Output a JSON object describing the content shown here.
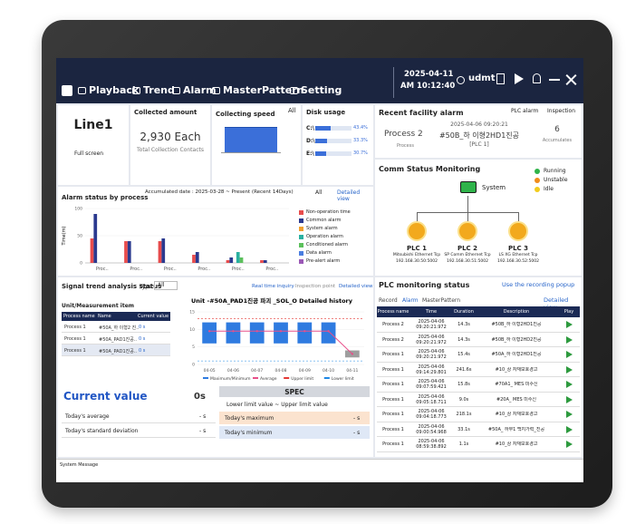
{
  "nav": {
    "items": [
      "Playback",
      "Trend",
      "Alarm",
      "MasterPattern",
      "Setting"
    ],
    "date": "2025-04-11",
    "time": "AM 10:12:40",
    "user": "udmt"
  },
  "line_panel": {
    "title": "Line1",
    "mode": "Full screen"
  },
  "collected": {
    "label": "Collected amount",
    "value": "2,930 Each",
    "caption": "Total Collection Contacts"
  },
  "speed": {
    "label": "Collecting speed",
    "filter": "All"
  },
  "disk": {
    "label": "Disk usage",
    "drives": [
      {
        "name": "C:\\",
        "value": 43.4,
        "label": "43.4%"
      },
      {
        "name": "D:\\",
        "value": 33.3,
        "label": "33.3%"
      },
      {
        "name": "E:\\",
        "value": 30.7,
        "label": "30.7%"
      }
    ]
  },
  "recent_alarm": {
    "title": "Recent facility alarm",
    "tabs": [
      "PLC alarm",
      "Inspection"
    ],
    "process": "Process 2",
    "process_caption": "Process",
    "time": "2025-04-06 09:20:21",
    "message": "#50B_하 이형2HD1진공",
    "sub": "[PLC 1]",
    "count": "6",
    "count_caption": "Accumulates"
  },
  "comm": {
    "title": "Comm Status Monitoring",
    "legend": [
      {
        "name": "Running",
        "color": "#2fb34a"
      },
      {
        "name": "Unstable",
        "color": "#f08c1a"
      },
      {
        "name": "Idle",
        "color": "#f2cc1d"
      }
    ],
    "system": "System",
    "plcs": [
      {
        "name": "PLC 1",
        "desc": "Mitsubishi Ethernet Tcp",
        "ip": "192.168.30.50:5002"
      },
      {
        "name": "PLC 2",
        "desc": "SP Comm Ethernet Tcp",
        "ip": "192.168.30.51:5002"
      },
      {
        "name": "PLC 3",
        "desc": "LS XG Ethernet Tcp",
        "ip": "192.168.30.52:5002"
      }
    ]
  },
  "alarm_status": {
    "title": "Alarm status by process",
    "accumulated": "Accumulated date : 2025-03-28 ~ Present (Recent 14Days)",
    "filter": "All",
    "link": "Detailed view"
  },
  "chart_data": [
    {
      "type": "bar",
      "y_label": "Time(m)",
      "categories": [
        "Proc..",
        "Proc..",
        "Proc..",
        "Proc..",
        "Proc..",
        "Proc.."
      ],
      "ylim": [
        0,
        100
      ],
      "yticks": [
        0,
        50,
        100
      ],
      "series": [
        {
          "name": "Non-operation time",
          "color": "#e84c4c",
          "values": [
            45,
            40,
            40,
            15,
            5,
            5
          ]
        },
        {
          "name": "Common alarm",
          "color": "#2b3a8f",
          "values": [
            90,
            40,
            45,
            20,
            10,
            5
          ]
        },
        {
          "name": "System alarm",
          "color": "#f0a030",
          "values": [
            0,
            0,
            0,
            0,
            0,
            0
          ]
        },
        {
          "name": "Operation alarm",
          "color": "#2ab0a0",
          "values": [
            0,
            0,
            0,
            0,
            20,
            0
          ]
        },
        {
          "name": "Conditioned alarm",
          "color": "#5cc05c",
          "values": [
            0,
            0,
            0,
            0,
            10,
            0
          ]
        },
        {
          "name": "Data alarm",
          "color": "#4a7ee0",
          "values": [
            0,
            0,
            0,
            0,
            0,
            0
          ]
        },
        {
          "name": "Pre-alert alarm",
          "color": "#9b59b6",
          "values": [
            0,
            0,
            0,
            0,
            0,
            0
          ]
        }
      ]
    },
    {
      "type": "range",
      "title": "Unit -#50A_PAD1진공 파괴 _SOL_O Detailed history",
      "categories": [
        "04-05",
        "04-06",
        "04-07",
        "04-08",
        "04-09",
        "04-10",
        "04-11"
      ],
      "ylim": [
        0,
        15
      ],
      "yticks": [
        0,
        5,
        10,
        15
      ],
      "series": [
        {
          "name": "Maximum/Minimum",
          "color": "#2f7be0",
          "colors": [
            "#2f7be0",
            "#2f7be0",
            "#2f7be0",
            "#2f7be0",
            "#2f7be0",
            "#2f7be0",
            "#9e9e9e"
          ],
          "values": [
            [
              6,
              12
            ],
            [
              6,
              12
            ],
            [
              6,
              12
            ],
            [
              6,
              12
            ],
            [
              6,
              12
            ],
            [
              6,
              12
            ],
            [
              2,
              4
            ]
          ]
        },
        {
          "name": "Average",
          "color": "#e8508a",
          "values": [
            9.5,
            9.5,
            9.5,
            9.5,
            9.5,
            9.5,
            3
          ]
        }
      ],
      "limits": [
        {
          "name": "Upper limit",
          "color": "#e53935",
          "value": 13
        },
        {
          "name": "Lower limit",
          "color": "#1e88e5",
          "value": 1
        }
      ]
    }
  ],
  "trend": {
    "title": "Signal trend analysis status",
    "type_label": "Type:",
    "type_value": "All",
    "links": [
      "Real time inquiry",
      "Inspection point",
      "Detailed view"
    ],
    "unit_title": "Unit/Measurement item",
    "headers": [
      "Process name",
      "Name",
      "Current value"
    ],
    "rows": [
      [
        "Process 1",
        "#50A_하 이형2 진..",
        "0 s"
      ],
      [
        "Process 1",
        "#50A_PAD1진공..",
        "0 s"
      ],
      [
        "Process 1",
        "#50A_PAD1진공..",
        "0 s"
      ]
    ],
    "current_label": "Current value",
    "current_value": "0s",
    "stats": [
      {
        "label": "Today's average",
        "value": "- s"
      },
      {
        "label": "Today's standard deviation",
        "value": "- s"
      }
    ],
    "spec_title": "SPEC",
    "spec_range": "Lower limit value ~ Upper limit value",
    "spec_stats": [
      {
        "label": "Today's maximum",
        "value": "- s"
      },
      {
        "label": "Today's minimum",
        "value": "- s"
      }
    ]
  },
  "plc": {
    "title": "PLC monitoring status",
    "link": "Use the recording popup",
    "tabs": [
      "Record",
      "Alarm",
      "MasterPattern"
    ],
    "detail": "Detailed view",
    "headers": [
      "Process name",
      "Time",
      "Duration",
      "Description",
      "Play"
    ],
    "rows": [
      [
        "Process 2",
        "2025-04-06 09:20:21.972",
        "14.3s",
        "#50B_하 이형2HD1진공"
      ],
      [
        "Process 2",
        "2025-04-06 09:20:21.972",
        "14.3s",
        "#50B_하 이형2HD2진공"
      ],
      [
        "Process 1",
        "2025-04-06 09:20:21.972",
        "15.4s",
        "#50A_하 이형2HD1진공"
      ],
      [
        "Process 1",
        "2025-04-06 09:14:29.801",
        "241.6s",
        "#10_상 자재보호경고"
      ],
      [
        "Process 1",
        "2025-04-06 09:07:59.421",
        "15.8s",
        "#70A1_ MES 미수신"
      ],
      [
        "Process 1",
        "2025-04-06 09:05:18.711",
        "9.0s",
        "#20A_ MES 미수신"
      ],
      [
        "Process 1",
        "2025-04-06 09:04:18.773",
        "218.1s",
        "#10_상 자재보호경고"
      ],
      [
        "Process 1",
        "2025-04-06 09:00:54.968",
        "33.1s",
        "#50A_ 하부1 백지가력_진공"
      ],
      [
        "Process 1",
        "2025-04-06 08:59:38.892",
        "1.1s",
        "#10_상 자재보호경고"
      ]
    ]
  },
  "footer": {
    "message": "System Message"
  }
}
